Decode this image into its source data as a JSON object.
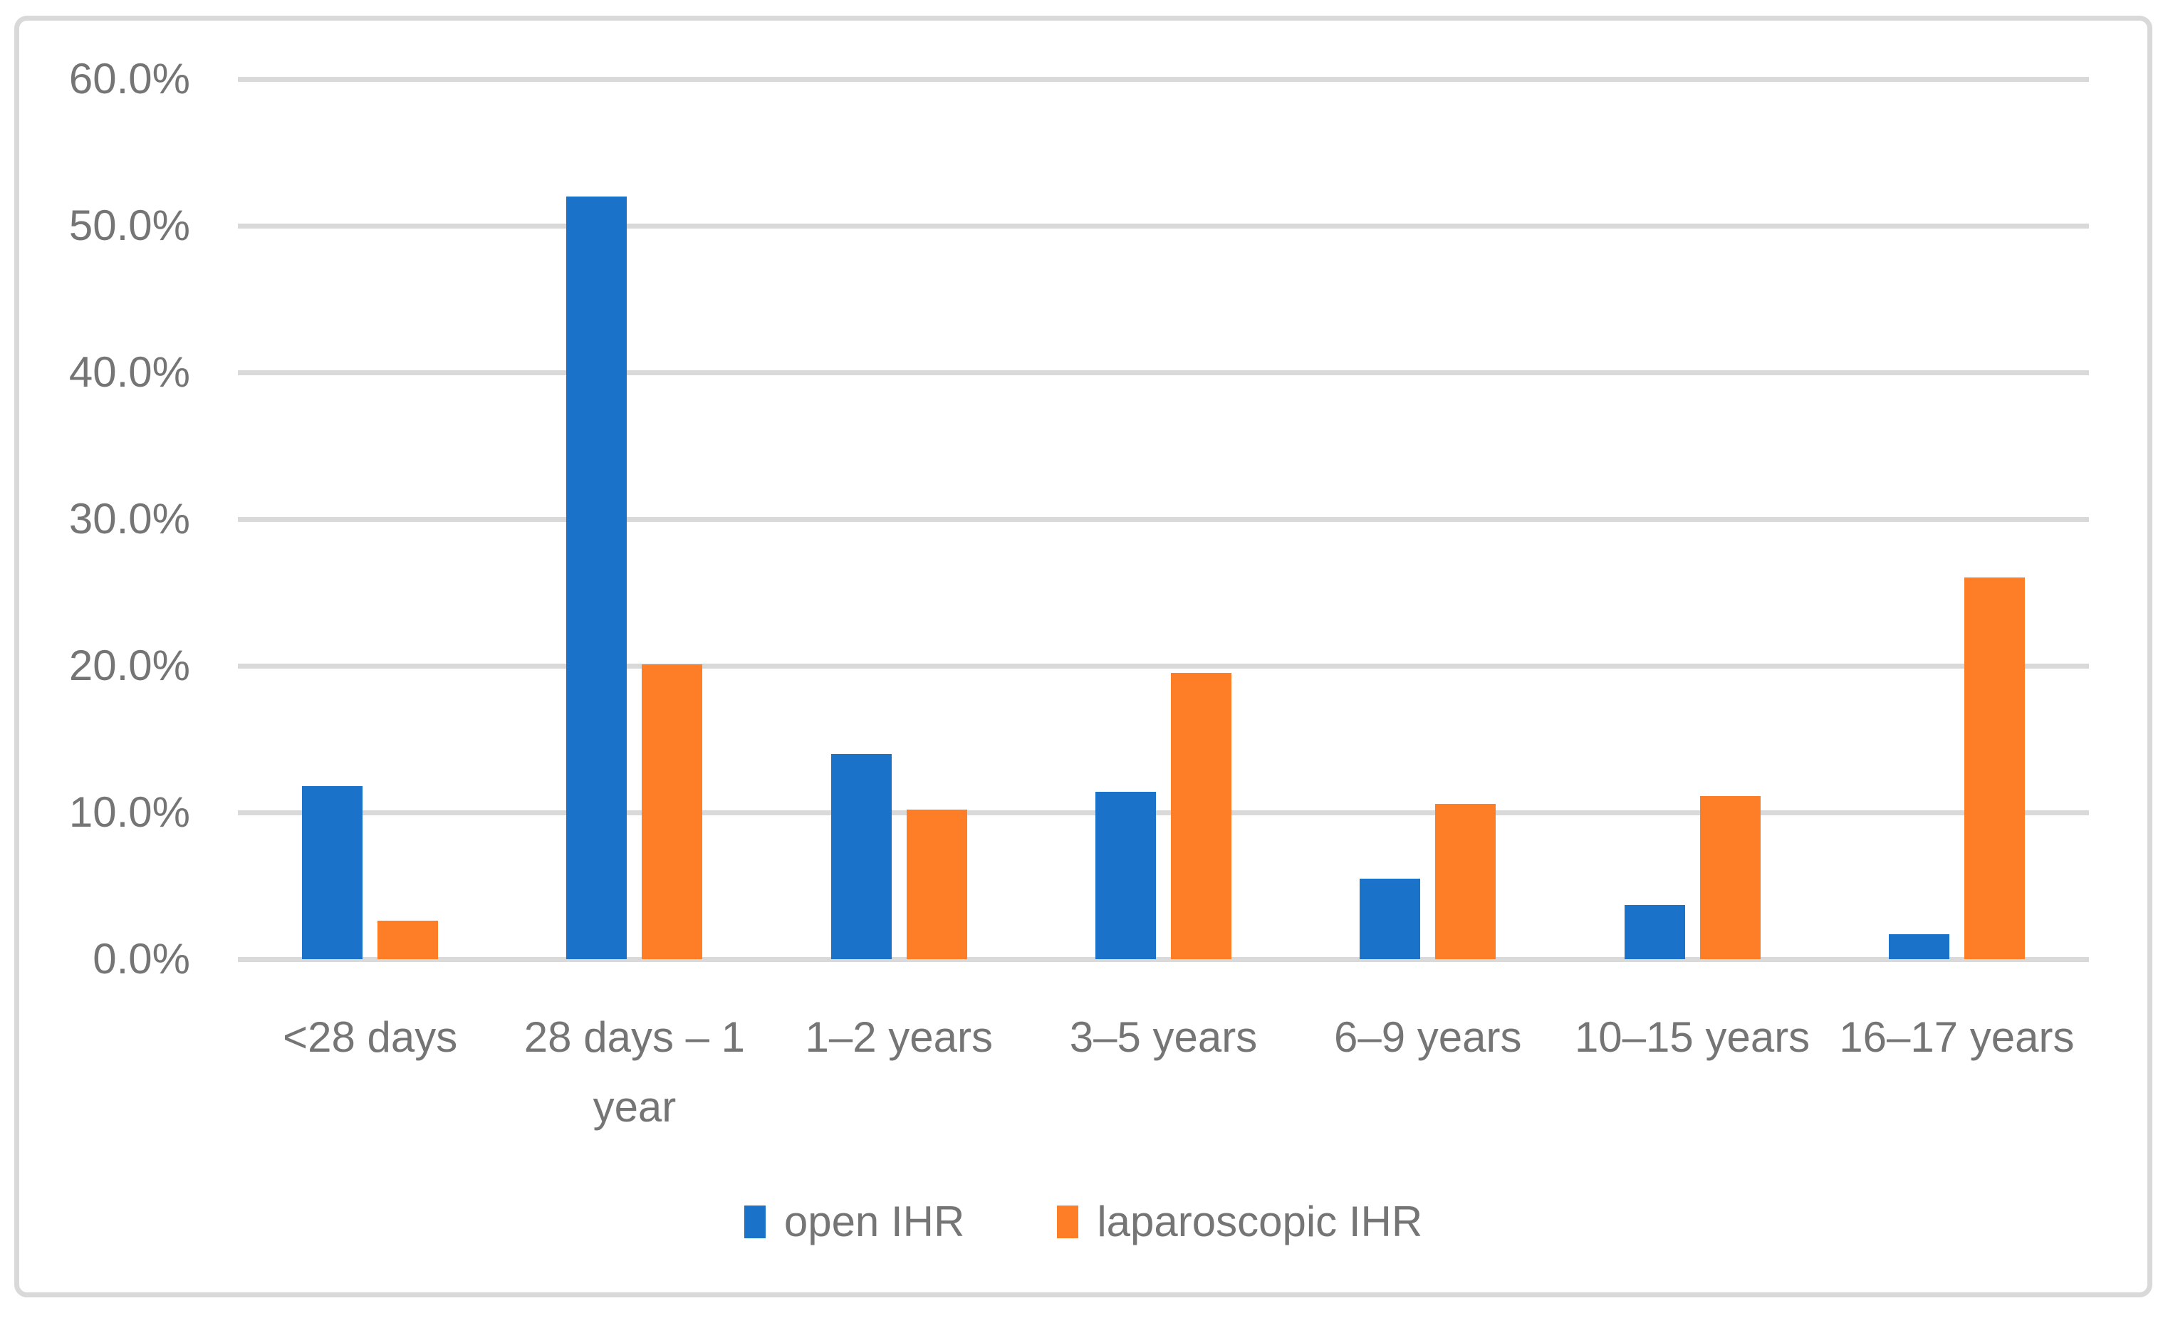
{
  "chart_data": {
    "type": "bar",
    "title": "",
    "xlabel": "",
    "ylabel": "",
    "categories": [
      "<28 days",
      "28 days – 1 year",
      "1–2 years",
      "3–5 years",
      "6–9 years",
      "10–15 years",
      "16–17 years"
    ],
    "series": [
      {
        "name": "open IHR",
        "color": "#1A73C8",
        "values": [
          11.8,
          52.0,
          14.0,
          11.4,
          5.5,
          3.7,
          1.7
        ]
      },
      {
        "name": "laparoscopic IHR",
        "color": "#FD7E27",
        "values": [
          2.6,
          20.1,
          10.2,
          19.5,
          10.6,
          11.1,
          26.0
        ]
      }
    ],
    "ylim": [
      0,
      60
    ],
    "ytick_step": 10,
    "ytick_labels": [
      "0.0%",
      "10.0%",
      "20.0%",
      "30.0%",
      "40.0%",
      "50.0%",
      "60.0%"
    ],
    "grid": true,
    "legend_position": "bottom"
  },
  "colors": {
    "gridline": "#D9D9D9",
    "frame_border": "#D9D9D9",
    "axis_text": "#757575",
    "background": "#FFFFFF"
  }
}
